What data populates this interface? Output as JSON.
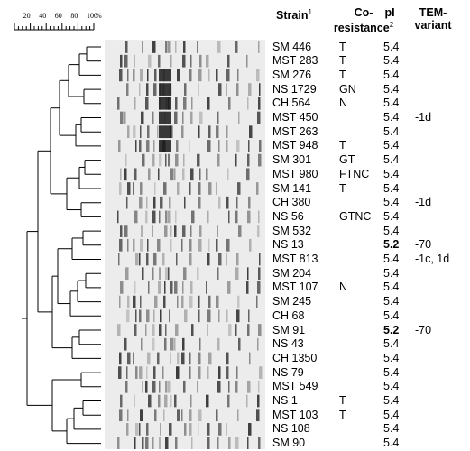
{
  "scale": {
    "ticks": [
      20,
      40,
      60,
      80,
      100
    ],
    "unit": "%"
  },
  "headers": {
    "strain": "Strain",
    "strain_sup": "1",
    "coresistance_line1": "Co-",
    "coresistance_line2": "resistance",
    "coresistance_sup": "2",
    "pi": "pI",
    "tem_line1": "TEM-",
    "tem_line2": "variant"
  },
  "rows": [
    {
      "strain": "SM 446",
      "coresistance": "T",
      "pi": "5.4",
      "tem": ""
    },
    {
      "strain": "MST 283",
      "coresistance": "T",
      "pi": "5.4",
      "tem": ""
    },
    {
      "strain": "SM 276",
      "coresistance": "T",
      "pi": "5.4",
      "tem": ""
    },
    {
      "strain": "NS 1729",
      "coresistance": "GN",
      "pi": "5.4",
      "tem": ""
    },
    {
      "strain": "CH 564",
      "coresistance": "N",
      "pi": "5.4",
      "tem": ""
    },
    {
      "strain": "MST 450",
      "coresistance": "",
      "pi": "5.4",
      "tem": "-1d"
    },
    {
      "strain": "MST 263",
      "coresistance": "",
      "pi": "5.4",
      "tem": ""
    },
    {
      "strain": "MST 948",
      "coresistance": "T",
      "pi": "5.4",
      "tem": ""
    },
    {
      "strain": "SM 301",
      "coresistance": "GT",
      "pi": "5.4",
      "tem": ""
    },
    {
      "strain": "MST 980",
      "coresistance": "FTNC",
      "pi": "5.4",
      "tem": ""
    },
    {
      "strain": "SM 141",
      "coresistance": "T",
      "pi": "5.4",
      "tem": ""
    },
    {
      "strain": "CH 380",
      "coresistance": "",
      "pi": "5.4",
      "tem": "-1d"
    },
    {
      "strain": "NS 56",
      "coresistance": "GTNC",
      "pi": "5.4",
      "tem": ""
    },
    {
      "strain": "SM 532",
      "coresistance": "",
      "pi": "5.4",
      "tem": ""
    },
    {
      "strain": "NS 13",
      "coresistance": "",
      "pi": "5.2",
      "tem": "-70",
      "bold_pi": true
    },
    {
      "strain": "MST 813",
      "coresistance": "",
      "pi": "5.4",
      "tem": "-1c, 1d"
    },
    {
      "strain": "SM 204",
      "coresistance": "",
      "pi": "5.4",
      "tem": ""
    },
    {
      "strain": "MST 107",
      "coresistance": "N",
      "pi": "5.4",
      "tem": ""
    },
    {
      "strain": "SM 245",
      "coresistance": "",
      "pi": "5.4",
      "tem": ""
    },
    {
      "strain": "CH 68",
      "coresistance": "",
      "pi": "5.4",
      "tem": ""
    },
    {
      "strain": "SM 91",
      "coresistance": "",
      "pi": "5.2",
      "tem": "-70",
      "bold_pi": true
    },
    {
      "strain": "NS 43",
      "coresistance": "",
      "pi": "5.4",
      "tem": ""
    },
    {
      "strain": "CH 1350",
      "coresistance": "",
      "pi": "5.4",
      "tem": ""
    },
    {
      "strain": "NS 79",
      "coresistance": "",
      "pi": "5.4",
      "tem": ""
    },
    {
      "strain": "MST 549",
      "coresistance": "",
      "pi": "5.4",
      "tem": ""
    },
    {
      "strain": "NS 1",
      "coresistance": "T",
      "pi": "5.4",
      "tem": ""
    },
    {
      "strain": "MST 103",
      "coresistance": "T",
      "pi": "5.4",
      "tem": ""
    },
    {
      "strain": "NS 108",
      "coresistance": "",
      "pi": "5.4",
      "tem": ""
    },
    {
      "strain": "SM 90",
      "coresistance": "",
      "pi": "5.4",
      "tem": ""
    }
  ],
  "colors": {
    "line": "#000000",
    "gel_background": "#ececec",
    "band_dark": "#1a1a1a"
  }
}
